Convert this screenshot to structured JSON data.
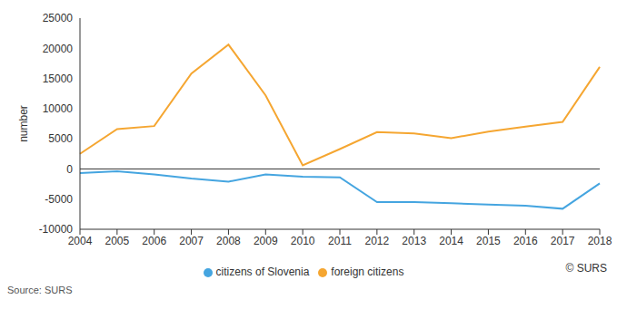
{
  "chart_data": {
    "type": "line",
    "y_label": "number",
    "categories": [
      "2004",
      "2005",
      "2006",
      "2007",
      "2008",
      "2009",
      "2010",
      "2011",
      "2012",
      "2013",
      "2014",
      "2015",
      "2016",
      "2017",
      "2018"
    ],
    "series": [
      {
        "name": "citizens of Slovenia",
        "color": "#45a5e0",
        "values": [
          -700,
          -400,
          -900,
          -1600,
          -2100,
          -900,
          -1300,
          -1400,
          -5500,
          -5500,
          -5700,
          -5900,
          -6100,
          -6600,
          -2400
        ]
      },
      {
        "name": "foreign citizens",
        "color": "#f5a631",
        "values": [
          2500,
          6600,
          7100,
          15800,
          20600,
          12200,
          600,
          3300,
          6100,
          5900,
          5100,
          6200,
          7000,
          7800,
          16900
        ]
      }
    ],
    "ylim": [
      -10000,
      25000
    ],
    "yticks": [
      -10000,
      -5000,
      0,
      5000,
      10000,
      15000,
      20000,
      25000
    ],
    "grid": false,
    "legend": "bottom",
    "annotations": [
      "Source: SURS",
      "© SURS"
    ]
  }
}
